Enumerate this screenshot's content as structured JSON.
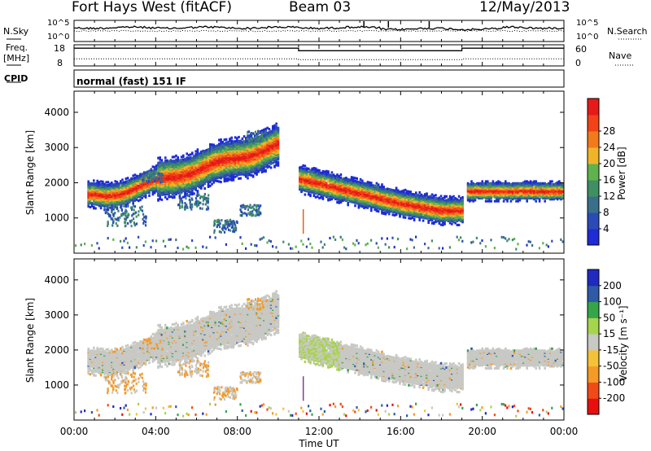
{
  "header": {
    "station": "Fort Hays West (fitACF)",
    "beam": "Beam 03",
    "date": "12/May/2013"
  },
  "side_labels": {
    "nsky": "N.Sky",
    "nsearch": "N.Search",
    "freq": "Freq.",
    "freq_unit": "[MHz]",
    "nave": "Nave",
    "cpid": "CPID"
  },
  "cpid_text": "normal (fast) 151 IF",
  "colors": {
    "power": [
      "#1e2bd6",
      "#2a4bb7",
      "#3a6f8a",
      "#3f8f63",
      "#5fb24c",
      "#f0b428",
      "#f37a1a",
      "#f24218",
      "#e61a1a"
    ],
    "velocity": [
      "#e80f0f",
      "#f24a16",
      "#f59a26",
      "#f3c236",
      "#c8c8c4",
      "#a7d44d",
      "#35a54a",
      "#2e5aa6",
      "#2029c0"
    ]
  },
  "chart_data": [
    {
      "type": "line",
      "name": "noise",
      "series": [
        {
          "name": "N.Sky"
        },
        {
          "name": "N.Search"
        }
      ],
      "tick_labels_left": [
        "10^5",
        "10^0"
      ],
      "tick_labels_right": [
        "10^5",
        "10^0"
      ]
    },
    {
      "type": "line",
      "name": "frequency",
      "series": [
        {
          "name": "Freq.",
          "x": [
            0,
            11,
            11,
            19,
            19,
            24
          ],
          "values": [
            16.4,
            16.4,
            15.2,
            15.2,
            16.4,
            16.4
          ]
        },
        {
          "name": "Nave"
        }
      ],
      "left_ticks": [
        "18",
        "8"
      ],
      "right_ticks": [
        "60",
        "0"
      ]
    },
    {
      "type": "heatmap",
      "name": "power",
      "xlabel": "",
      "ylabel": "Slant Range [km]",
      "yticks": [
        "1000",
        "2000",
        "3000",
        "4000"
      ],
      "colorbar": {
        "label": "Power [dB]",
        "ticks": [
          "4",
          "8",
          "12",
          "16",
          "20",
          "24",
          "28"
        ]
      }
    },
    {
      "type": "heatmap",
      "name": "velocity",
      "xlabel": "Time UT",
      "ylabel": "Slant Range [km]",
      "xticks": [
        "00:00",
        "04:00",
        "08:00",
        "12:00",
        "16:00",
        "20:00",
        "00:00"
      ],
      "yticks": [
        "1000",
        "2000",
        "3000",
        "4000"
      ],
      "colorbar": {
        "label": "Velocity [m s⁻¹]",
        "ticks": [
          "200",
          "100",
          "50",
          "15",
          "-15",
          "-50",
          "-100",
          "-200"
        ]
      }
    }
  ]
}
